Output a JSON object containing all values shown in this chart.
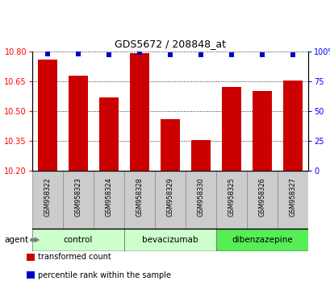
{
  "title": "GDS5672 / 208848_at",
  "samples": [
    "GSM958322",
    "GSM958323",
    "GSM958324",
    "GSM958328",
    "GSM958329",
    "GSM958330",
    "GSM958325",
    "GSM958326",
    "GSM958327"
  ],
  "bar_values": [
    10.76,
    10.68,
    10.57,
    10.79,
    10.46,
    10.355,
    10.62,
    10.6,
    10.655
  ],
  "percentile_values": [
    98,
    98,
    97,
    99,
    97,
    97,
    97,
    97,
    97
  ],
  "ylim_left": [
    10.2,
    10.8
  ],
  "ylim_right": [
    0,
    100
  ],
  "yticks_left": [
    10.2,
    10.35,
    10.5,
    10.65,
    10.8
  ],
  "yticks_right": [
    0,
    25,
    50,
    75,
    100
  ],
  "bar_color": "#cc0000",
  "dot_color": "#0000cc",
  "groups": [
    {
      "label": "control",
      "start": 0,
      "end": 3,
      "color": "#ccffcc"
    },
    {
      "label": "bevacizumab",
      "start": 3,
      "end": 6,
      "color": "#ccffcc"
    },
    {
      "label": "dibenzazepine",
      "start": 6,
      "end": 9,
      "color": "#55ee55"
    }
  ],
  "legend_bar_label": "transformed count",
  "legend_dot_label": "percentile rank within the sample",
  "agent_label": "agent"
}
